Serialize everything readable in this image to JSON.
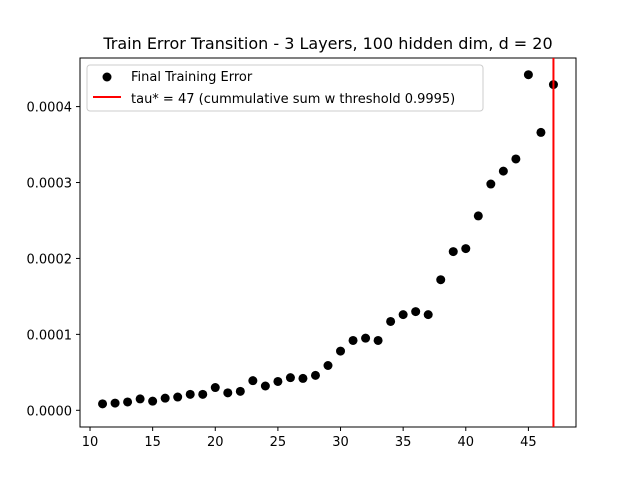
{
  "chart_data": {
    "type": "scatter",
    "title": "Train Error Transition - 3 Layers, 100 hidden dim, d = 20",
    "xlabel": "",
    "ylabel": "",
    "xlim": [
      9.2,
      48.8
    ],
    "ylim": [
      -2.2e-05,
      0.000464
    ],
    "xticks": [
      {
        "value": 10,
        "label": "10"
      },
      {
        "value": 15,
        "label": "15"
      },
      {
        "value": 20,
        "label": "20"
      },
      {
        "value": 25,
        "label": "25"
      },
      {
        "value": 30,
        "label": "30"
      },
      {
        "value": 35,
        "label": "35"
      },
      {
        "value": 40,
        "label": "40"
      },
      {
        "value": 45,
        "label": "45"
      }
    ],
    "yticks": [
      {
        "value": 0.0,
        "label": "0.0000"
      },
      {
        "value": 0.0001,
        "label": "0.0001"
      },
      {
        "value": 0.0002,
        "label": "0.0002"
      },
      {
        "value": 0.0003,
        "label": "0.0003"
      },
      {
        "value": 0.0004,
        "label": "0.0004"
      }
    ],
    "grid": false,
    "legend_position": "top-left",
    "series": [
      {
        "name": "Final Training Error",
        "marker": "circle",
        "color": "#000000",
        "points": [
          {
            "x": 11,
            "y": 8.5e-06
          },
          {
            "x": 12,
            "y": 9.5e-06
          },
          {
            "x": 13,
            "y": 1.1e-05
          },
          {
            "x": 14,
            "y": 1.5e-05
          },
          {
            "x": 15,
            "y": 1.2e-05
          },
          {
            "x": 16,
            "y": 1.6e-05
          },
          {
            "x": 17,
            "y": 1.75e-05
          },
          {
            "x": 18,
            "y": 2.1e-05
          },
          {
            "x": 19,
            "y": 2.1e-05
          },
          {
            "x": 20,
            "y": 3e-05
          },
          {
            "x": 21,
            "y": 2.3e-05
          },
          {
            "x": 22,
            "y": 2.5e-05
          },
          {
            "x": 23,
            "y": 3.9e-05
          },
          {
            "x": 24,
            "y": 3.2e-05
          },
          {
            "x": 25,
            "y": 3.8e-05
          },
          {
            "x": 26,
            "y": 4.3e-05
          },
          {
            "x": 27,
            "y": 4.2e-05
          },
          {
            "x": 28,
            "y": 4.6e-05
          },
          {
            "x": 29,
            "y": 5.9e-05
          },
          {
            "x": 30,
            "y": 7.8e-05
          },
          {
            "x": 31,
            "y": 9.2e-05
          },
          {
            "x": 32,
            "y": 9.5e-05
          },
          {
            "x": 33,
            "y": 9.2e-05
          },
          {
            "x": 34,
            "y": 0.000117
          },
          {
            "x": 35,
            "y": 0.000126
          },
          {
            "x": 36,
            "y": 0.00013
          },
          {
            "x": 37,
            "y": 0.000126
          },
          {
            "x": 38,
            "y": 0.000172
          },
          {
            "x": 39,
            "y": 0.000209
          },
          {
            "x": 40,
            "y": 0.000213
          },
          {
            "x": 41,
            "y": 0.000256
          },
          {
            "x": 42,
            "y": 0.000298
          },
          {
            "x": 43,
            "y": 0.000315
          },
          {
            "x": 44,
            "y": 0.000331
          },
          {
            "x": 45,
            "y": 0.000442
          },
          {
            "x": 46,
            "y": 0.000366
          },
          {
            "x": 47,
            "y": 0.000429
          }
        ]
      }
    ],
    "vlines": [
      {
        "name": "tau* = 47 (cummulative sum w threshold 0.9995)",
        "x": 47,
        "color": "#ff0000"
      }
    ]
  }
}
